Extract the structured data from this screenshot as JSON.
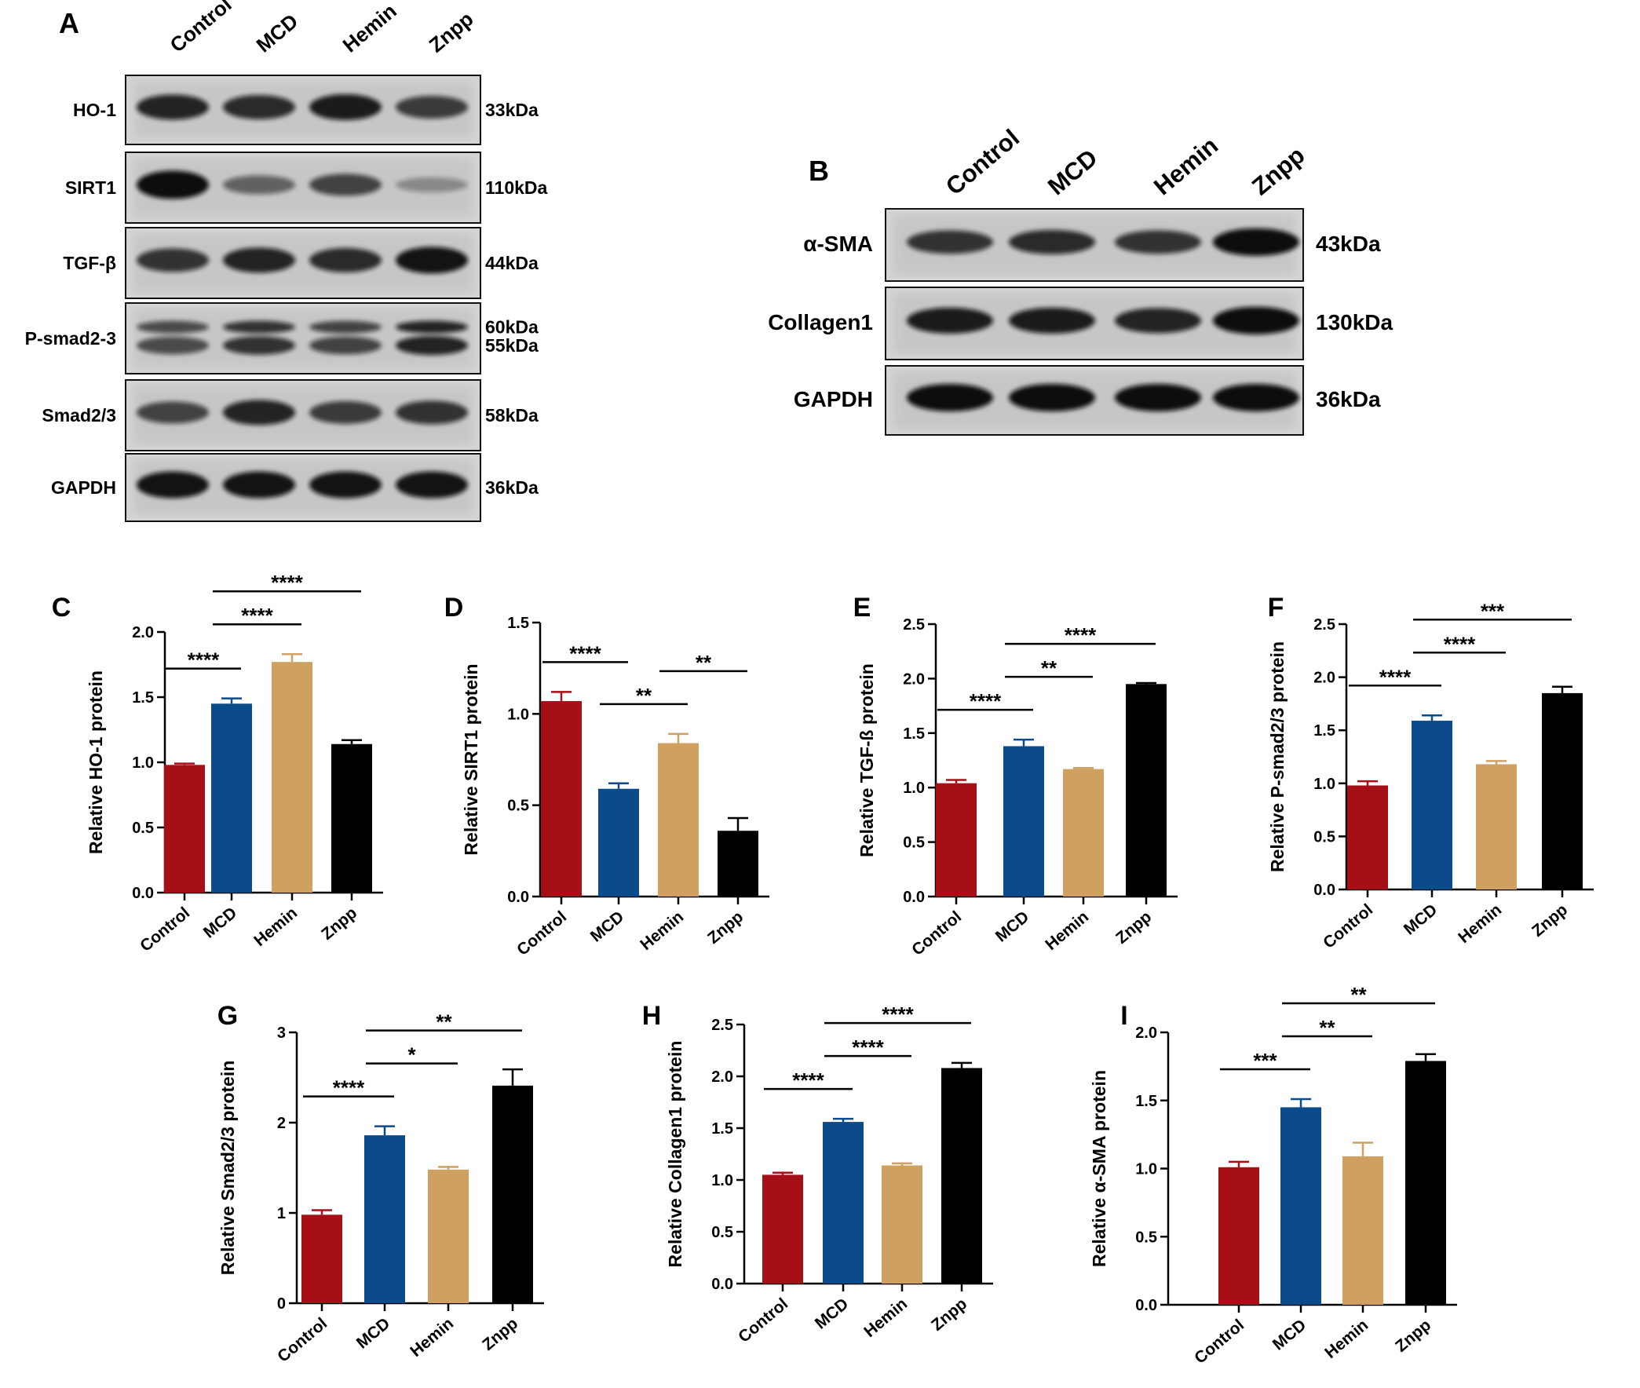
{
  "blots": [
    {
      "panel": "A",
      "lanes": [
        "Control",
        "MCD",
        "Hemin",
        "Znpp"
      ],
      "rows": [
        {
          "label": "HO-1",
          "sizes": [
            "33kDa"
          ],
          "intensity": [
            0.8,
            0.75,
            0.85,
            0.65
          ],
          "doublet": false
        },
        {
          "label": "SIRT1",
          "sizes": [
            "110kDa"
          ],
          "intensity": [
            1.0,
            0.4,
            0.6,
            0.15
          ],
          "doublet": false
        },
        {
          "label": "TGF-β",
          "sizes": [
            "44kDa"
          ],
          "intensity": [
            0.7,
            0.8,
            0.75,
            0.9
          ],
          "doublet": false
        },
        {
          "label": "P-smad2-3",
          "sizes": [
            "60kDa",
            "55kDa"
          ],
          "intensity": [
            0.55,
            0.7,
            0.6,
            0.8
          ],
          "doublet": true
        },
        {
          "label": "Smad2/3",
          "sizes": [
            "58kDa"
          ],
          "intensity": [
            0.6,
            0.8,
            0.65,
            0.7
          ],
          "doublet": false
        },
        {
          "label": "GAPDH",
          "sizes": [
            "36kDa"
          ],
          "intensity": [
            0.9,
            0.9,
            0.9,
            0.9
          ],
          "doublet": false
        }
      ]
    },
    {
      "panel": "B",
      "lanes": [
        "Control",
        "MCD",
        "Hemin",
        "Znpp"
      ],
      "rows": [
        {
          "label": "α-SMA",
          "sizes": [
            "43kDa"
          ],
          "intensity": [
            0.7,
            0.75,
            0.7,
            0.95
          ],
          "doublet": false
        },
        {
          "label": "Collagen1",
          "sizes": [
            "130kDa"
          ],
          "intensity": [
            0.85,
            0.85,
            0.8,
            0.95
          ],
          "doublet": false
        },
        {
          "label": "GAPDH",
          "sizes": [
            "36kDa"
          ],
          "intensity": [
            0.95,
            0.95,
            0.95,
            0.95
          ],
          "doublet": false
        }
      ]
    }
  ],
  "colors": [
    "#a50f15",
    "#0b4a8b",
    "#cfa05f",
    "#000000"
  ],
  "chart_data": [
    {
      "panel": "C",
      "type": "bar",
      "categories": [
        "Control",
        "MCD",
        "Hemin",
        "Znpp"
      ],
      "values": [
        0.98,
        1.45,
        1.77,
        1.14
      ],
      "errors": [
        0.01,
        0.04,
        0.06,
        0.03
      ],
      "ylabel": "Relative HO-1 protein",
      "ylim": [
        0,
        2.0
      ],
      "yticks": [
        "0.0",
        "0.5",
        "1.0",
        "1.5",
        "2.0"
      ],
      "significance": [
        {
          "from": 0,
          "to": 1,
          "label": "****"
        },
        {
          "from": 1,
          "to": 2,
          "label": "****"
        },
        {
          "from": 1,
          "to": 3,
          "label": "****"
        }
      ]
    },
    {
      "panel": "D",
      "type": "bar",
      "categories": [
        "Control",
        "MCD",
        "Hemin",
        "Znpp"
      ],
      "values": [
        1.07,
        0.59,
        0.84,
        0.36
      ],
      "errors": [
        0.05,
        0.03,
        0.05,
        0.07
      ],
      "ylabel": "Relative SIRT1 protein",
      "ylim": [
        0,
        1.5
      ],
      "yticks": [
        "0.0",
        "0.5",
        "1.0",
        "1.5"
      ],
      "significance": [
        {
          "from": 0,
          "to": 1,
          "label": "****"
        },
        {
          "from": 1,
          "to": 2,
          "label": "**"
        },
        {
          "from": 2,
          "to": 3,
          "label": "**"
        }
      ]
    },
    {
      "panel": "E",
      "type": "bar",
      "categories": [
        "Control",
        "MCD",
        "Hemin",
        "Znpp"
      ],
      "values": [
        1.04,
        1.38,
        1.17,
        1.95
      ],
      "errors": [
        0.03,
        0.06,
        0.01,
        0.01
      ],
      "ylabel": "Relative TGF-ß protein",
      "ylim": [
        0,
        2.5
      ],
      "yticks": [
        "0.0",
        "0.5",
        "1.0",
        "1.5",
        "2.0",
        "2.5"
      ],
      "significance": [
        {
          "from": 0,
          "to": 1,
          "label": "****"
        },
        {
          "from": 1,
          "to": 2,
          "label": "**"
        },
        {
          "from": 1,
          "to": 3,
          "label": "****"
        }
      ]
    },
    {
      "panel": "F",
      "type": "bar",
      "categories": [
        "Control",
        "MCD",
        "Hemin",
        "Znpp"
      ],
      "values": [
        0.98,
        1.59,
        1.18,
        1.85
      ],
      "errors": [
        0.04,
        0.05,
        0.03,
        0.06
      ],
      "ylabel": "Relative P-smad2/3 protein",
      "ylim": [
        0,
        2.5
      ],
      "yticks": [
        "0.0",
        "0.5",
        "1.0",
        "1.5",
        "2.0",
        "2.5"
      ],
      "significance": [
        {
          "from": 0,
          "to": 1,
          "label": "****"
        },
        {
          "from": 1,
          "to": 2,
          "label": "****"
        },
        {
          "from": 1,
          "to": 3,
          "label": "***"
        }
      ]
    },
    {
      "panel": "G",
      "type": "bar",
      "categories": [
        "Control",
        "MCD",
        "Hemin",
        "Znpp"
      ],
      "values": [
        0.98,
        1.86,
        1.48,
        2.41
      ],
      "errors": [
        0.05,
        0.1,
        0.03,
        0.18
      ],
      "ylabel": "Relative Smad2/3 protein",
      "ylim": [
        0,
        3
      ],
      "yticks": [
        "0",
        "1",
        "2",
        "3"
      ],
      "significance": [
        {
          "from": 0,
          "to": 1,
          "label": "****"
        },
        {
          "from": 1,
          "to": 2,
          "label": "*"
        },
        {
          "from": 1,
          "to": 3,
          "label": "**"
        }
      ]
    },
    {
      "panel": "H",
      "type": "bar",
      "categories": [
        "Control",
        "MCD",
        "Hemin",
        "Znpp"
      ],
      "values": [
        1.05,
        1.56,
        1.14,
        2.08
      ],
      "errors": [
        0.02,
        0.03,
        0.02,
        0.05
      ],
      "ylabel": "Relative Collagen1 protein",
      "ylim": [
        0,
        2.5
      ],
      "yticks": [
        "0.0",
        "0.5",
        "1.0",
        "1.5",
        "2.0",
        "2.5"
      ],
      "significance": [
        {
          "from": 0,
          "to": 1,
          "label": "****"
        },
        {
          "from": 1,
          "to": 2,
          "label": "****"
        },
        {
          "from": 1,
          "to": 3,
          "label": "****"
        }
      ]
    },
    {
      "panel": "I",
      "type": "bar",
      "categories": [
        "Control",
        "MCD",
        "Hemin",
        "Znpp"
      ],
      "values": [
        1.01,
        1.45,
        1.09,
        1.79
      ],
      "errors": [
        0.04,
        0.06,
        0.1,
        0.05
      ],
      "ylabel": "Relative α-SMA protein",
      "ylim": [
        0,
        2.0
      ],
      "yticks": [
        "0.0",
        "0.5",
        "1.0",
        "1.5",
        "2.0"
      ],
      "significance": [
        {
          "from": 0,
          "to": 1,
          "label": "***"
        },
        {
          "from": 1,
          "to": 2,
          "label": "**"
        },
        {
          "from": 1,
          "to": 3,
          "label": "**"
        }
      ]
    }
  ]
}
